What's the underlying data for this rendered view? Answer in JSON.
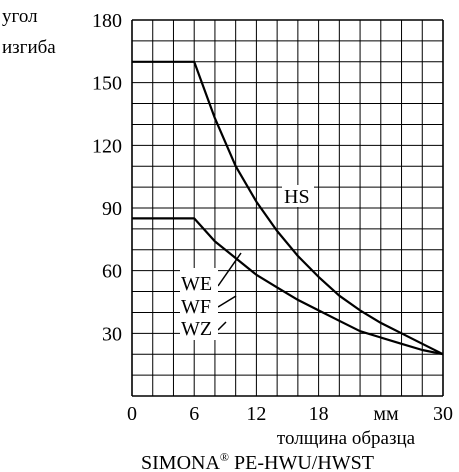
{
  "chart_data": {
    "type": "line",
    "ylabel": [
      "угол",
      "изгиба"
    ],
    "xlabel": "толщина образца",
    "xunit": "мм",
    "title": "SIMONA",
    "title_mark": "®",
    "title_rest": " PE-HWU/HWST",
    "xlim": [
      0,
      30
    ],
    "ylim": [
      0,
      180
    ],
    "x_ticks": [
      0,
      6,
      12,
      18,
      30
    ],
    "x_tick_labels": [
      "0",
      "6",
      "12",
      "18",
      "30"
    ],
    "y_ticks": [
      30,
      60,
      90,
      120,
      150,
      180
    ],
    "y_tick_labels": [
      "30",
      "60",
      "90",
      "120",
      "150",
      "180"
    ],
    "grid": true,
    "grid_x_step": 2,
    "grid_y_step": 10,
    "series": [
      {
        "name": "HS",
        "x": [
          0,
          6,
          8,
          10,
          12,
          14,
          16,
          18,
          20,
          22,
          24,
          26,
          28,
          30
        ],
        "y": [
          160,
          160,
          133,
          110,
          93,
          79,
          67,
          57,
          48,
          41,
          35,
          30,
          25,
          20
        ]
      },
      {
        "name": "WE WF WZ",
        "x": [
          0,
          6,
          8,
          10,
          12,
          14,
          16,
          18,
          20,
          22,
          24,
          26,
          28,
          30
        ],
        "y": [
          85,
          85,
          74,
          66,
          58,
          52,
          46,
          41,
          36,
          31,
          28,
          25,
          22,
          20
        ]
      }
    ],
    "annotations": [
      "HS",
      "WE",
      "WF",
      "WZ"
    ],
    "colors": {
      "line": "#000000",
      "grid": "#000000",
      "background": "#ffffff"
    }
  }
}
